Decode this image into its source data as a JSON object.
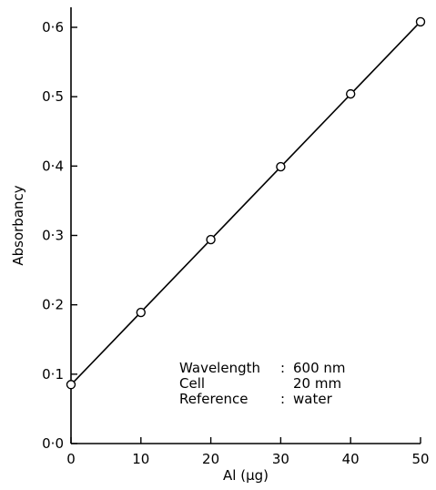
{
  "chart_data": {
    "type": "line",
    "title": "",
    "xlabel": "Al (μg)",
    "ylabel": "Absorbancy",
    "xlim": [
      0,
      50
    ],
    "ylim": [
      0,
      0.65
    ],
    "x_ticks": [
      0,
      10,
      20,
      30,
      40,
      50
    ],
    "x_tick_labels": [
      "0",
      "10",
      "20",
      "30",
      "40",
      "50"
    ],
    "y_ticks": [
      0,
      0.1,
      0.2,
      0.3,
      0.4,
      0.5,
      0.6
    ],
    "y_tick_labels": [
      "0·0",
      "0·1",
      "0·2",
      "0·3",
      "0·4",
      "0·5",
      "0·6"
    ],
    "grid": false,
    "series": [
      {
        "marker": "open-circle",
        "x": [
          0,
          10,
          20,
          30,
          40,
          50
        ],
        "y": [
          0.085,
          0.189,
          0.294,
          0.399,
          0.504,
          0.608
        ]
      }
    ],
    "annotations": [
      {
        "key": "Wavelength",
        "sep": ":",
        "value": "600 nm"
      },
      {
        "key": "Cell",
        "sep": "",
        "value": "20 mm"
      },
      {
        "key": "Reference",
        "sep": ":",
        "value": "water"
      }
    ]
  }
}
